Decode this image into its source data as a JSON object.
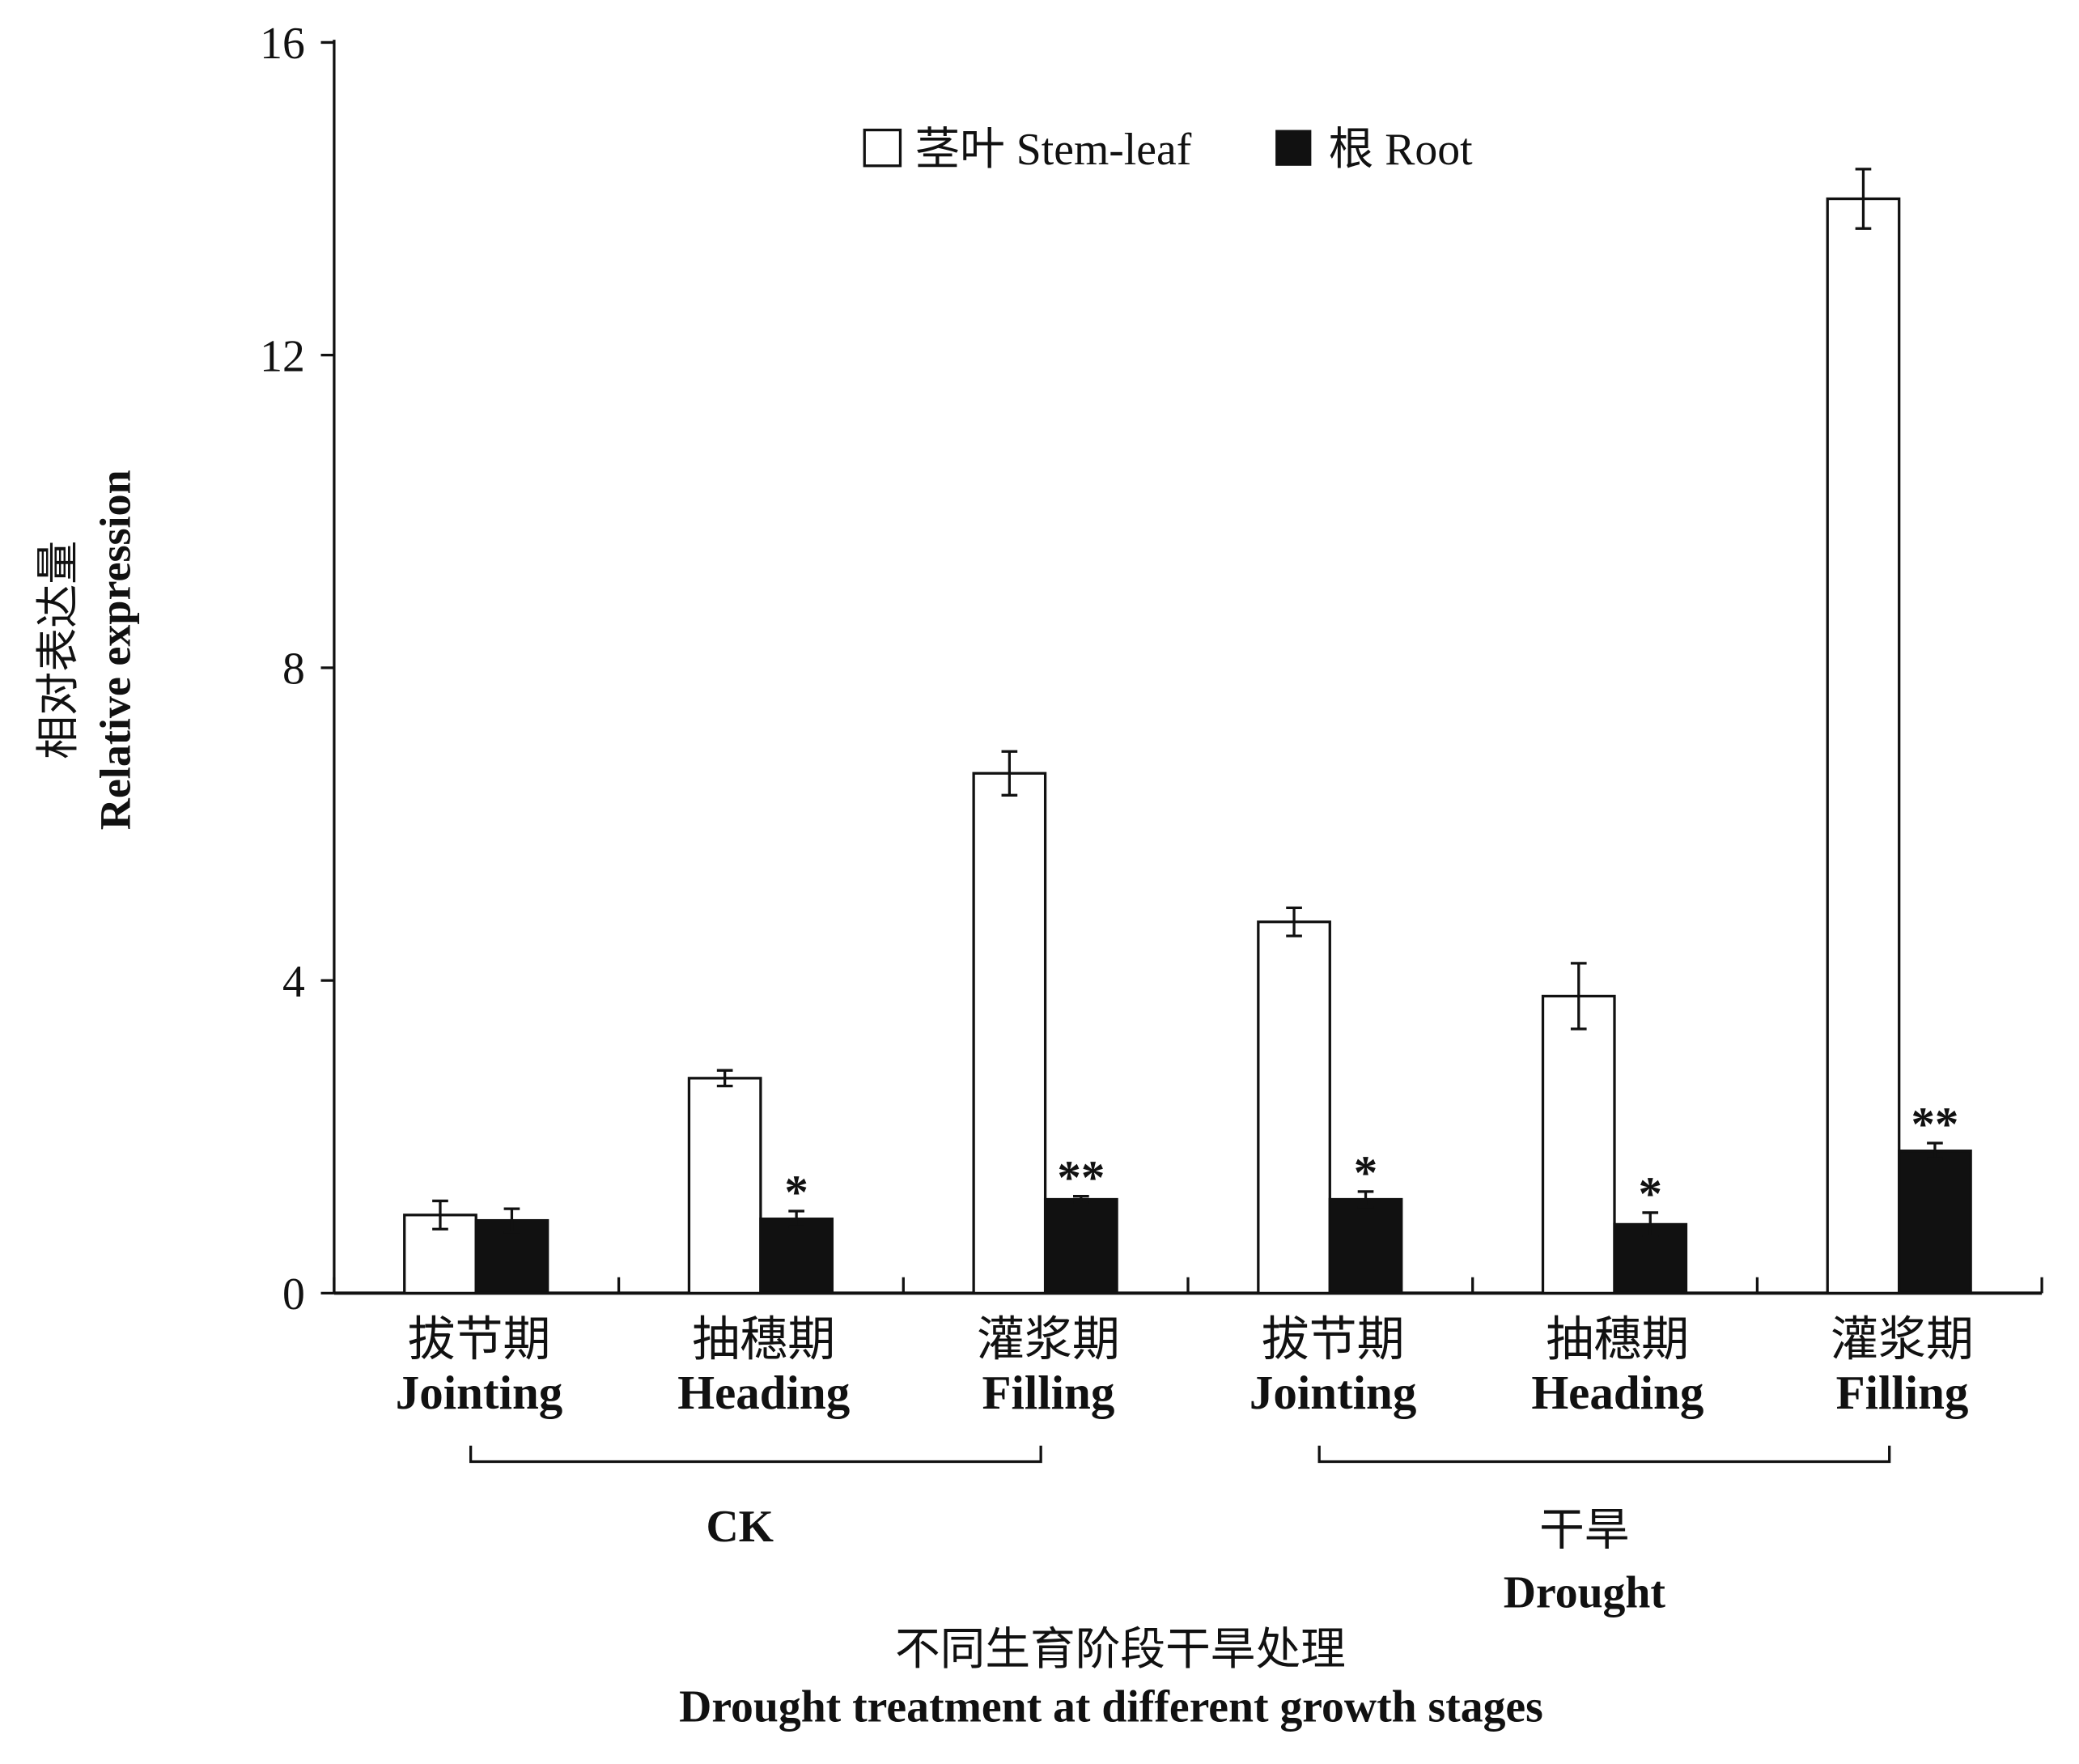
{
  "chart_data": {
    "type": "bar",
    "title": "",
    "ylabel_cn": "相对表达量",
    "ylabel": "Relative expression",
    "xlabel_cn": "不同生育阶段干旱处理",
    "xlabel": "Drought treatment at different growth stages",
    "ylim": [
      0,
      16
    ],
    "yticks": [
      "0",
      "4",
      "8",
      "12",
      "16"
    ],
    "ytick_values": [
      0,
      4,
      8,
      12,
      16
    ],
    "categories_cn": [
      "拔节期",
      "抽穗期",
      "灌浆期",
      "拔节期",
      "抽穗期",
      "灌浆期"
    ],
    "categories": [
      "Jointing",
      "Heading",
      "Filling",
      "Jointing",
      "Heading",
      "Filling"
    ],
    "groups": [
      {
        "label": "CK",
        "label_cn": "",
        "span": [
          0,
          2
        ]
      },
      {
        "label": "Drought",
        "label_cn": "干旱",
        "span": [
          3,
          5
        ]
      }
    ],
    "legend_position": "top-center",
    "series": [
      {
        "name": "茎叶 Stem-leaf",
        "color": "#ffffff",
        "values": [
          1.0,
          2.75,
          6.65,
          4.75,
          3.8,
          14.0
        ],
        "errors": [
          0.18,
          0.1,
          0.28,
          0.18,
          0.42,
          0.38
        ],
        "annotations": [
          "",
          "",
          "",
          "",
          "",
          ""
        ]
      },
      {
        "name": "根 Root",
        "color": "#111111",
        "values": [
          0.93,
          0.95,
          1.2,
          1.2,
          0.88,
          1.82
        ],
        "errors": [
          0.15,
          0.1,
          0.04,
          0.1,
          0.15,
          0.1
        ],
        "annotations": [
          "",
          "*",
          "**",
          "*",
          "*",
          "**"
        ]
      }
    ]
  }
}
